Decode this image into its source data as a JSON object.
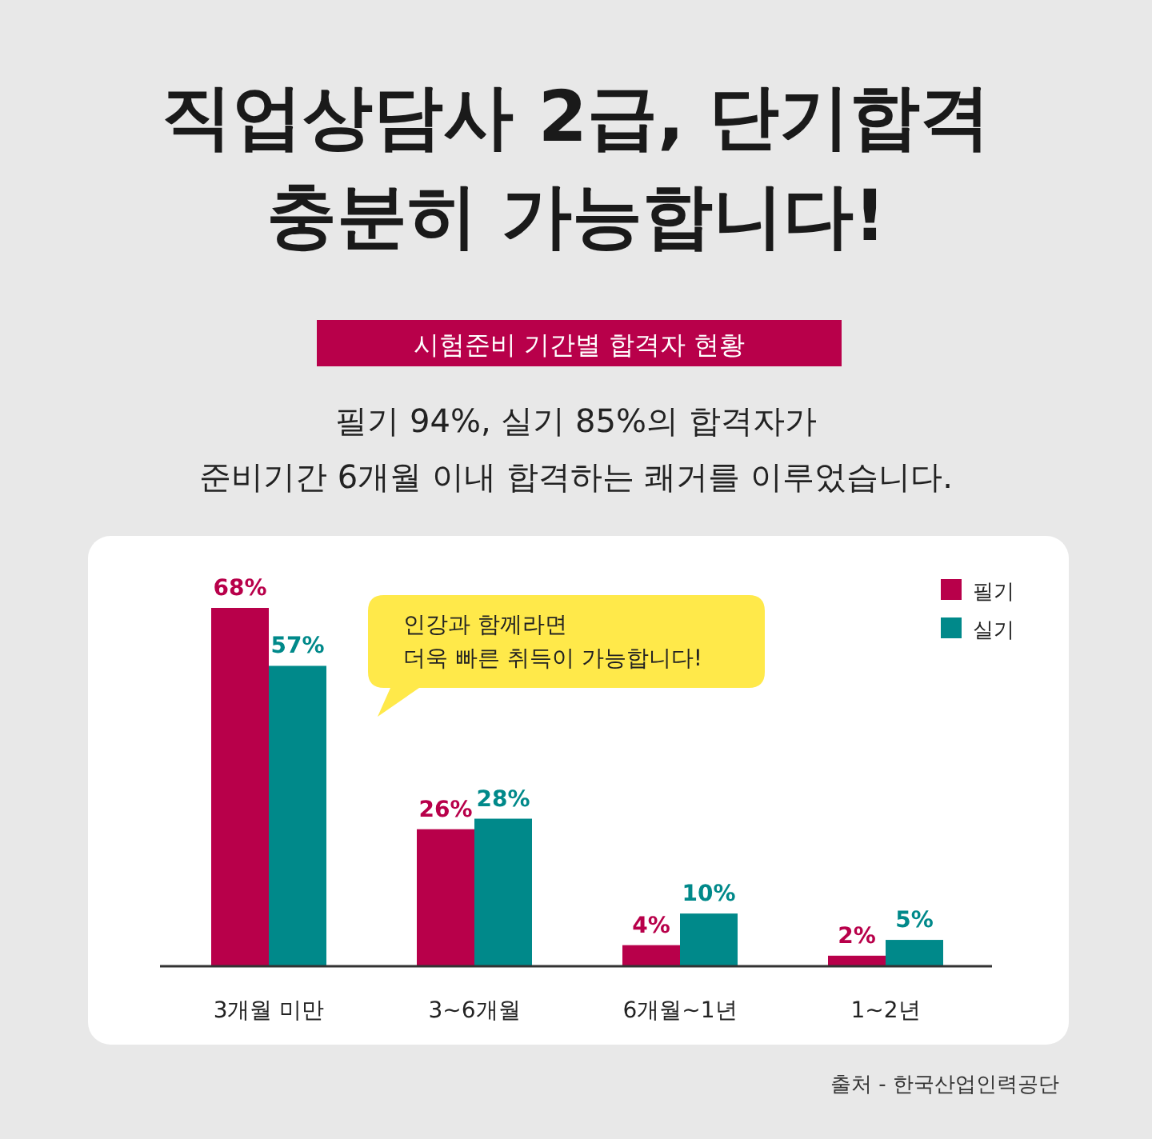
{
  "chart_data": {
    "type": "bar",
    "title": "직업상담사 2급, 단기합격\n충분히 가능합니다!",
    "subtitle": "시험준비 기간별 합격자 현황",
    "annotations": [
      "필기 94%, 실기 85%의 합격자가\n준비기간 6개월 이내 합격하는 쾌거를 이루었습니다.",
      "인강과 함께라면\n더욱 빠른 취득이 가능합니다!",
      "출처 - 한국산업인력공단"
    ],
    "categories": [
      "3개월 미만",
      "3~6개월",
      "6개월~1년",
      "1~2년"
    ],
    "series": [
      {
        "name": "필기",
        "color": "#b8004a",
        "values": [
          68,
          26,
          4,
          2
        ],
        "value_labels": [
          "68%",
          "26%",
          "4%",
          "2%"
        ]
      },
      {
        "name": "실기",
        "color": "#00898a",
        "values": [
          57,
          28,
          10,
          5
        ],
        "value_labels": [
          "57%",
          "28%",
          "10%",
          "5%"
        ]
      }
    ],
    "legend": "top right"
  }
}
